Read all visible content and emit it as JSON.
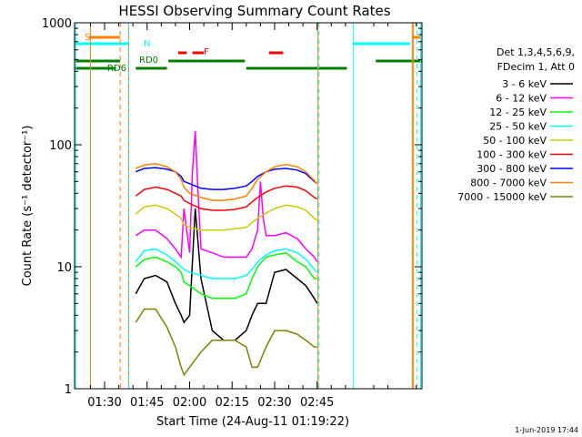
{
  "chart_data": {
    "type": "line",
    "title": "HESSI Observing Summary Count Rates",
    "xlabel": "Start Time (24-Aug-11 01:19:22)",
    "ylabel": "Count Rate (s⁻¹ detector⁻¹)",
    "yscale": "log",
    "xlim": [
      19.4,
      142
    ],
    "ylim": [
      1,
      1000
    ],
    "x_ticks": [
      {
        "value": 30,
        "label": "01:30"
      },
      {
        "value": 45,
        "label": "01:45"
      },
      {
        "value": 60,
        "label": "02:00"
      },
      {
        "value": 75,
        "label": "02:15"
      },
      {
        "value": 90,
        "label": "02:30"
      },
      {
        "value": 105,
        "label": "02:45"
      }
    ],
    "y_ticks": [
      {
        "value": 1,
        "label": "1"
      },
      {
        "value": 10,
        "label": "10"
      },
      {
        "value": 100,
        "label": "100"
      },
      {
        "value": 1000,
        "label": "1000"
      }
    ],
    "legend": {
      "header": [
        "Det 1,3,4,5,6,9,",
        "FDecim 1, Att 0"
      ],
      "position": "right"
    },
    "series": [
      {
        "name": "3 - 6 keV",
        "color": "#000000",
        "x": [
          41,
          44,
          48,
          52,
          55,
          57,
          58,
          60,
          62,
          64,
          68,
          72,
          76,
          80,
          82,
          84,
          87,
          90,
          94,
          98,
          101,
          104,
          105
        ],
        "y": [
          6,
          8,
          8.5,
          7.5,
          5,
          4,
          3.5,
          4,
          30,
          8,
          3,
          2.5,
          2.5,
          3,
          4,
          5,
          5,
          9,
          9.5,
          8,
          7,
          5.5,
          5
        ]
      },
      {
        "name": "6 - 12 keV",
        "color": "#ff00ff",
        "x": [
          41,
          44,
          48,
          52,
          55,
          57,
          58,
          60,
          61,
          62,
          63,
          64,
          68,
          72,
          76,
          80,
          82,
          84,
          85,
          86,
          87,
          90,
          94,
          98,
          101,
          104,
          105
        ],
        "y": [
          18,
          20,
          20,
          17,
          14,
          12,
          30,
          13,
          60,
          130,
          40,
          14,
          13,
          12,
          12,
          12,
          14,
          20,
          50,
          25,
          18,
          18,
          19,
          17,
          14,
          12,
          11
        ]
      },
      {
        "name": "12 - 25 keV",
        "color": "#00ff00",
        "x": [
          41,
          44,
          48,
          52,
          55,
          57,
          58,
          60,
          64,
          68,
          72,
          76,
          80,
          82,
          84,
          87,
          90,
          94,
          98,
          101,
          104,
          105
        ],
        "y": [
          10,
          11.5,
          12,
          11,
          10,
          9,
          7.5,
          7,
          6,
          5.5,
          5.5,
          5.5,
          6,
          8,
          10,
          12,
          12.5,
          13,
          11,
          10,
          8,
          8
        ]
      },
      {
        "name": "25 - 50 keV",
        "color": "#00ffff",
        "x": [
          41,
          44,
          48,
          52,
          55,
          57,
          58,
          60,
          64,
          68,
          72,
          76,
          80,
          82,
          84,
          87,
          90,
          94,
          98,
          101,
          104,
          105
        ],
        "y": [
          11,
          13.5,
          14,
          12.5,
          11,
          10,
          9.5,
          9,
          8.5,
          8,
          8,
          8,
          8.5,
          9.5,
          11,
          12.5,
          13.5,
          14,
          13,
          11.5,
          9.5,
          9
        ]
      },
      {
        "name": "50 - 100 keV",
        "color": "#cccc00",
        "x": [
          41,
          44,
          48,
          52,
          55,
          57,
          58,
          60,
          64,
          68,
          72,
          76,
          80,
          82,
          84,
          87,
          90,
          94,
          98,
          101,
          104,
          105
        ],
        "y": [
          27,
          31,
          32,
          30,
          27,
          25,
          22,
          21,
          20,
          20,
          20,
          20.5,
          21,
          23,
          25,
          27.5,
          30,
          32,
          31,
          29,
          25,
          24
        ]
      },
      {
        "name": "100 - 300 keV",
        "color": "#ff0000",
        "x": [
          41,
          44,
          48,
          52,
          55,
          57,
          58,
          60,
          64,
          68,
          72,
          76,
          80,
          82,
          84,
          87,
          90,
          94,
          98,
          101,
          104,
          105
        ],
        "y": [
          38,
          43,
          45,
          43,
          40,
          38,
          35,
          33,
          30,
          29,
          29,
          29.5,
          31,
          34,
          37,
          41,
          44,
          46,
          45,
          42,
          37,
          36
        ]
      },
      {
        "name": "300 - 800 keV",
        "color": "#0000ff",
        "x": [
          41,
          44,
          48,
          52,
          55,
          57,
          58,
          60,
          64,
          68,
          72,
          76,
          80,
          82,
          84,
          87,
          90,
          94,
          98,
          101,
          104,
          105
        ],
        "y": [
          60,
          64,
          65,
          63,
          60,
          55,
          50,
          48,
          44,
          43,
          43,
          44,
          46,
          50,
          55,
          60,
          63,
          64,
          62,
          58,
          50,
          48
        ]
      },
      {
        "name": "800 - 7000 keV",
        "color": "#ff8000",
        "x": [
          41,
          44,
          48,
          52,
          55,
          57,
          58,
          60,
          64,
          68,
          72,
          76,
          80,
          82,
          84,
          87,
          90,
          94,
          98,
          101,
          104,
          105
        ],
        "y": [
          64,
          68,
          70,
          66,
          60,
          52,
          45,
          40,
          37,
          35,
          35,
          36,
          38,
          44,
          52,
          60,
          66,
          69,
          66,
          60,
          51,
          48
        ]
      },
      {
        "name": "7000 - 15000 keV",
        "color": "#808000",
        "x": [
          41,
          44,
          48,
          52,
          55,
          57,
          58,
          60,
          64,
          68,
          72,
          76,
          80,
          82,
          84,
          87,
          90,
          94,
          98,
          101,
          104,
          105
        ],
        "y": [
          3.5,
          4.5,
          4.5,
          3.2,
          2.2,
          1.5,
          1.3,
          1.5,
          2,
          2.5,
          2.5,
          2.5,
          2.2,
          1.5,
          1.5,
          2.2,
          3,
          3,
          2.8,
          2.5,
          2.2,
          2.2
        ]
      }
    ],
    "annotations": {
      "s_label": "S",
      "n_label": "N",
      "f_label": "F",
      "rd0_label": "RD0",
      "rd6_label": "RD6",
      "s_segments": [
        [
          24.5,
          35.5
        ],
        [
          138.7,
          141.3
        ]
      ],
      "n_segments": [
        [
          19.4,
          38.5
        ],
        [
          117.5,
          137.8
        ]
      ],
      "f_segments": [
        [
          56,
          59
        ],
        [
          61,
          65
        ],
        [
          88,
          93
        ]
      ],
      "rd0_segments": [
        [
          19.4,
          35.5
        ],
        [
          52.5,
          79.5
        ],
        [
          125.7,
          142
        ]
      ],
      "rd6_segments": [
        [
          19.4,
          34
        ],
        [
          41,
          52
        ],
        [
          80,
          115.5
        ]
      ],
      "orange_vlines": [
        25,
        38.5,
        105.3,
        138.6,
        139
      ],
      "orange_dashed_vlines": [
        35.5
      ],
      "cyan_vlines": [
        19.8,
        117.7,
        141.5
      ],
      "cyan_dashed_vlines": [
        38.5,
        105.6,
        140.2
      ]
    },
    "footer_date": "1-Jun-2019 17:44"
  }
}
